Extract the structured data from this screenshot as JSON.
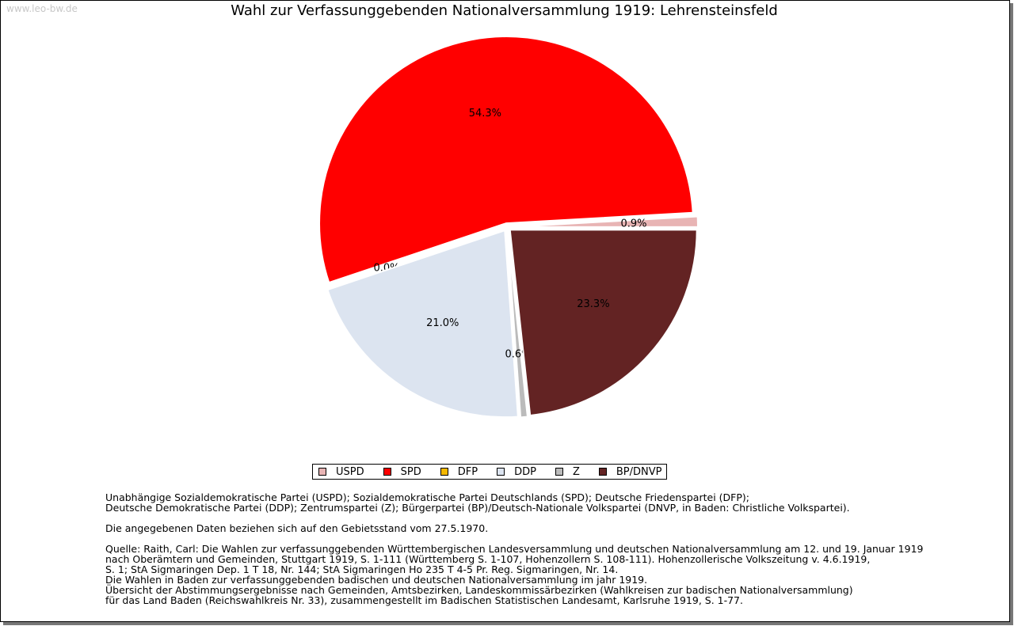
{
  "watermark": "www.leo-bw.de",
  "chart_data": {
    "type": "pie",
    "title": "Wahl zur Verfassunggebenden Nationalversammlung 1919: Lehrensteinsfeld",
    "slices": [
      {
        "name": "USPD",
        "value": 0.9,
        "label": "0.9%",
        "color": "#e8b4b4"
      },
      {
        "name": "SPD",
        "value": 54.3,
        "label": "54.3%",
        "color": "#ff0000"
      },
      {
        "name": "DFP",
        "value": 0.0,
        "label": "0.0%",
        "color": "#f5b800"
      },
      {
        "name": "DDP",
        "value": 21.0,
        "label": "21.0%",
        "color": "#dce4f0"
      },
      {
        "name": "Z",
        "value": 0.6,
        "label": "0.6%",
        "color": "#bbbbbb"
      },
      {
        "name": "BP/DNVP",
        "value": 23.3,
        "label": "23.3%",
        "color": "#632323"
      }
    ],
    "legend_position": "bottom-center"
  },
  "notes": {
    "parties": [
      "Unabhängige Sozialdemokratische Partei (USPD); Sozialdemokratische Partei Deutschlands (SPD); Deutsche Friedenspartei (DFP);",
      "Deutsche Demokratische Partei (DDP); Zentrumspartei (Z); Bürgerpartei (BP)/Deutsch-Nationale Volkspartei (DNVP, in Baden: Christliche Volkspartei)."
    ],
    "territory": "Die angegebenen Daten beziehen sich auf den Gebietsstand vom 27.5.1970.",
    "source": [
      "Quelle: Raith, Carl: Die Wahlen zur verfassunggebenden Württembergischen Landesversammlung und deutschen Nationalversammlung am 12. und 19. Januar 1919",
      "nach Oberämtern und Gemeinden, Stuttgart 1919, S. 1-111 (Württemberg S. 1-107, Hohenzollern S. 108-111). Hohenzollerische Volkszeitung v. 4.6.1919,",
      "S. 1; StA Sigmaringen Dep. 1 T 18, Nr. 144; StA Sigmaringen Ho 235 T 4-5 Pr. Reg. Sigmaringen, Nr. 14.",
      "Die Wahlen in Baden zur verfassunggebenden badischen und deutschen Nationalversammlung im jahr 1919.",
      "Übersicht der Abstimmungsergebnisse nach Gemeinden, Amtsbezirken, Landeskommissärbezirken (Wahlkreisen zur badischen Nationalversammlung)",
      "für das Land Baden (Reichswahlkreis Nr. 33), zusammengestellt im Badischen Statistischen Landesamt, Karlsruhe 1919, S. 1-77."
    ]
  }
}
